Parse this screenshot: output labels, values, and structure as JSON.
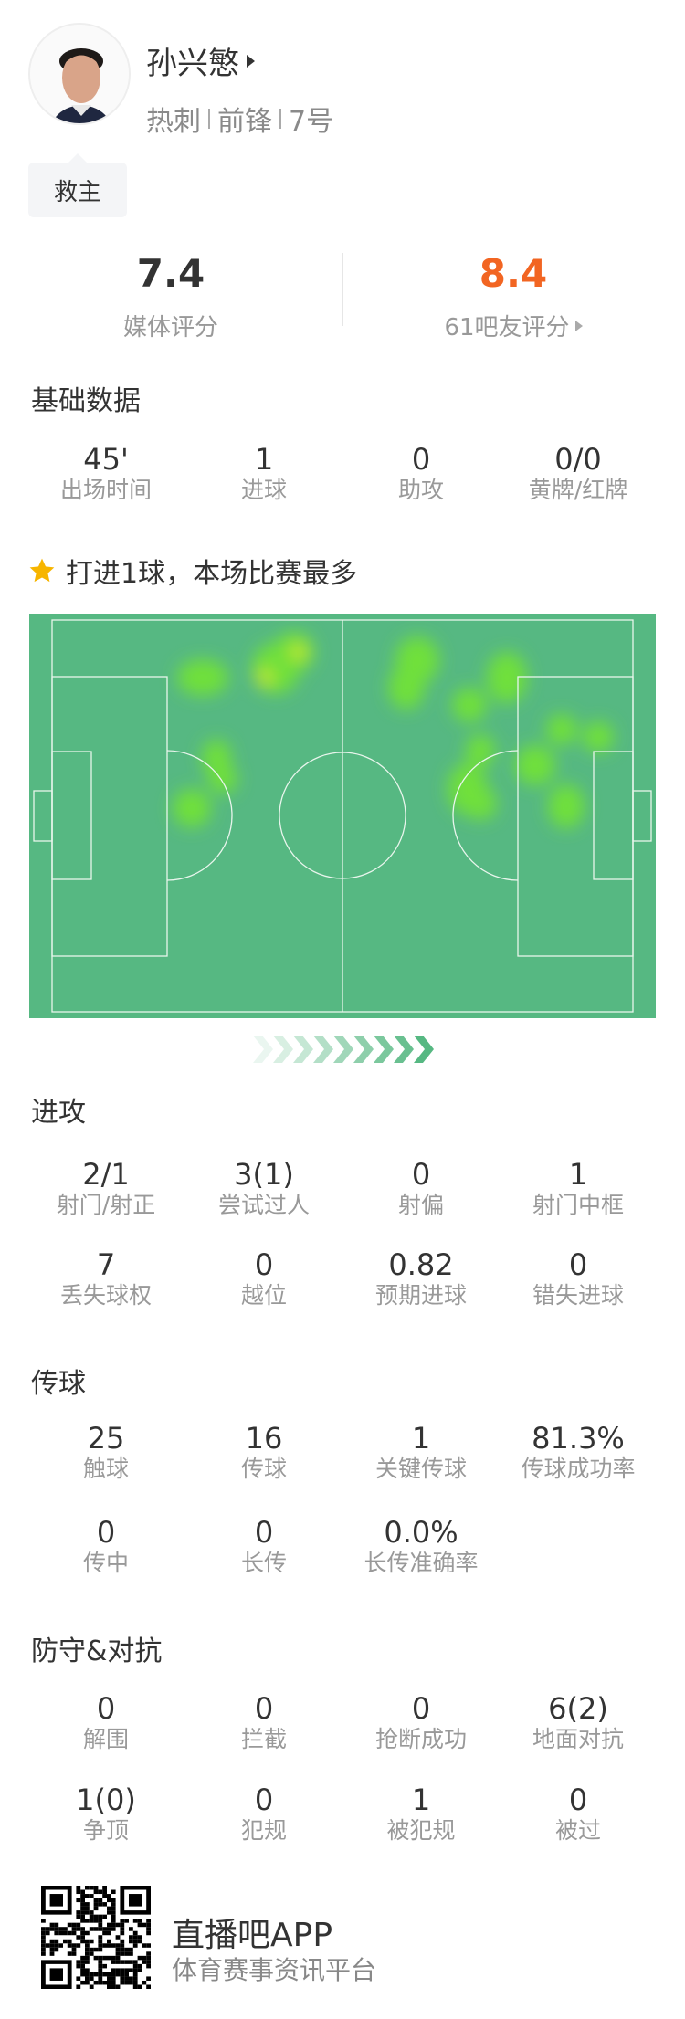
{
  "player": {
    "name": "孙兴慜",
    "team": "热刺",
    "position": "前锋",
    "number": "7号",
    "tag": "救主"
  },
  "ratings": {
    "media": {
      "value": "7.4",
      "label": "媒体评分"
    },
    "fans": {
      "value": "8.4",
      "label": "61吧友评分",
      "color": "#f26522"
    }
  },
  "basic": {
    "title": "基础数据",
    "stats": [
      {
        "value": "45'",
        "label": "出场时间"
      },
      {
        "value": "1",
        "label": "进球"
      },
      {
        "value": "0",
        "label": "助攻"
      },
      {
        "value": "0/0",
        "label": "黄牌/红牌"
      }
    ]
  },
  "highlight": {
    "icon": "star-icon",
    "text": "打进1球，本场比赛最多"
  },
  "heatmap": {
    "pitch_color": "#56b882",
    "direction_icon": "chevron-right-icon"
  },
  "attack": {
    "title": "进攻",
    "stats": [
      {
        "value": "2/1",
        "label": "射门/射正"
      },
      {
        "value": "3(1)",
        "label": "尝试过人"
      },
      {
        "value": "0",
        "label": "射偏"
      },
      {
        "value": "1",
        "label": "射门中框"
      },
      {
        "value": "7",
        "label": "丢失球权"
      },
      {
        "value": "0",
        "label": "越位"
      },
      {
        "value": "0.82",
        "label": "预期进球"
      },
      {
        "value": "0",
        "label": "错失进球"
      }
    ]
  },
  "passing": {
    "title": "传球",
    "stats": [
      {
        "value": "25",
        "label": "触球"
      },
      {
        "value": "16",
        "label": "传球"
      },
      {
        "value": "1",
        "label": "关键传球"
      },
      {
        "value": "81.3%",
        "label": "传球成功率"
      },
      {
        "value": "0",
        "label": "传中"
      },
      {
        "value": "0",
        "label": "长传"
      },
      {
        "value": "0.0%",
        "label": "长传准确率"
      }
    ]
  },
  "defense": {
    "title": "防守&对抗",
    "stats": [
      {
        "value": "0",
        "label": "解围"
      },
      {
        "value": "0",
        "label": "拦截"
      },
      {
        "value": "0",
        "label": "抢断成功"
      },
      {
        "value": "6(2)",
        "label": "地面对抗"
      },
      {
        "value": "1(0)",
        "label": "争顶"
      },
      {
        "value": "0",
        "label": "犯规"
      },
      {
        "value": "1",
        "label": "被犯规"
      },
      {
        "value": "0",
        "label": "被过"
      }
    ]
  },
  "footer": {
    "app": "直播吧APP",
    "slogan": "体育赛事资讯平台"
  }
}
